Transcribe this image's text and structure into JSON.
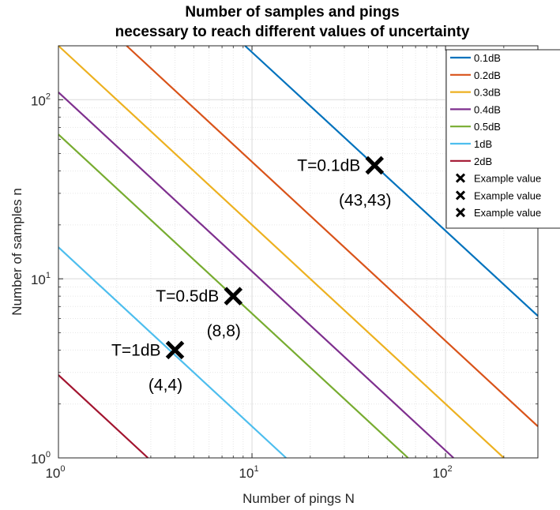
{
  "chart_data": {
    "type": "line",
    "title": [
      "Number of samples and pings",
      "necessary to reach different values of uncertainty"
    ],
    "xlabel": "Number of pings N",
    "ylabel": "Number of samples n",
    "xscale": "log",
    "yscale": "log",
    "xlim": [
      1,
      300
    ],
    "ylim": [
      1,
      200
    ],
    "x_ticks": [
      {
        "base": "10",
        "exp": "0"
      },
      {
        "base": "10",
        "exp": "1"
      },
      {
        "base": "10",
        "exp": "2"
      }
    ],
    "y_ticks": [
      {
        "base": "10",
        "exp": "0"
      },
      {
        "base": "10",
        "exp": "1"
      },
      {
        "base": "10",
        "exp": "2"
      }
    ],
    "grid": true,
    "legend_position": "top-right",
    "series": [
      {
        "name": "0.1dB",
        "color": "#0072BD",
        "relation": "N*n = 1849",
        "x": [
          9.2,
          300
        ],
        "y": [
          200,
          6.2
        ]
      },
      {
        "name": "0.2dB",
        "color": "#D95319",
        "relation": "N*n = 450",
        "x": [
          2.25,
          300
        ],
        "y": [
          200,
          1.5
        ]
      },
      {
        "name": "0.3dB",
        "color": "#EDB120",
        "relation": "N*n = 200",
        "x": [
          1,
          200
        ],
        "y": [
          200,
          1
        ]
      },
      {
        "name": "0.4dB",
        "color": "#7E2F8E",
        "relation": "N*n = 110",
        "x": [
          1,
          110
        ],
        "y": [
          110,
          1
        ]
      },
      {
        "name": "0.5dB",
        "color": "#77AC30",
        "relation": "N*n = 64",
        "x": [
          1,
          64
        ],
        "y": [
          64,
          1
        ]
      },
      {
        "name": "1dB",
        "color": "#4DBEEE",
        "relation": "N*n = 15",
        "x": [
          1,
          15
        ],
        "y": [
          15,
          1
        ]
      },
      {
        "name": "2dB",
        "color": "#A2142F",
        "relation": "N*n = 2.9",
        "x": [
          1,
          2.9
        ],
        "y": [
          2.9,
          1
        ]
      }
    ],
    "example_points": [
      {
        "name": "Example value",
        "x": 43,
        "y": 43,
        "label": "T=0.1dB",
        "coord": "(43,43)"
      },
      {
        "name": "Example value",
        "x": 8,
        "y": 8,
        "label": "T=0.5dB",
        "coord": "(8,8)"
      },
      {
        "name": "Example value",
        "x": 4,
        "y": 4,
        "label": "T=1dB",
        "coord": "(4,4)"
      }
    ]
  }
}
